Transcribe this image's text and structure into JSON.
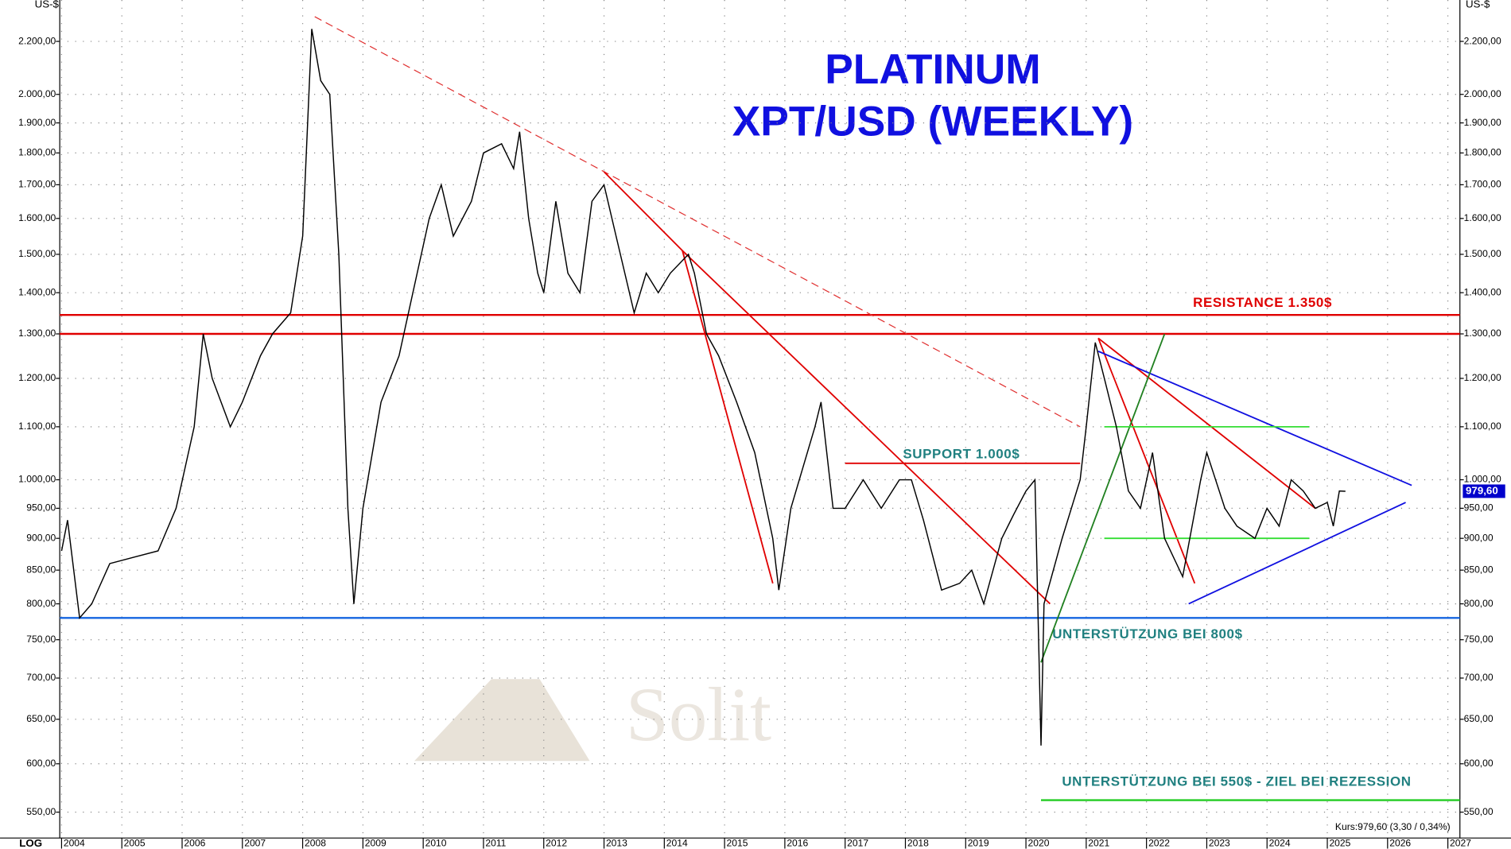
{
  "chart_data": {
    "type": "line",
    "title": "PLATINUM",
    "subtitle": "XPT/USD (WEEKLY)",
    "y_unit": "US-$",
    "scale_label": "LOG",
    "log_scale": true,
    "grid": true,
    "color": "#000000",
    "watermark": "Solit",
    "x": [
      2004.0,
      2004.1,
      2004.3,
      2004.5,
      2004.8,
      2005.2,
      2005.6,
      2005.9,
      2006.2,
      2006.35,
      2006.5,
      2006.8,
      2007.0,
      2007.3,
      2007.5,
      2007.8,
      2008.0,
      2008.15,
      2008.3,
      2008.45,
      2008.6,
      2008.75,
      2008.85,
      2009.0,
      2009.3,
      2009.6,
      2009.9,
      2010.1,
      2010.3,
      2010.5,
      2010.8,
      2011.0,
      2011.3,
      2011.5,
      2011.6,
      2011.75,
      2011.9,
      2012.0,
      2012.2,
      2012.4,
      2012.6,
      2012.8,
      2013.0,
      2013.2,
      2013.5,
      2013.7,
      2013.9,
      2014.1,
      2014.4,
      2014.5,
      2014.7,
      2014.9,
      2015.2,
      2015.5,
      2015.8,
      2015.9,
      2016.1,
      2016.5,
      2016.6,
      2016.8,
      2017.0,
      2017.3,
      2017.6,
      2017.9,
      2018.1,
      2018.3,
      2018.6,
      2018.9,
      2019.1,
      2019.3,
      2019.6,
      2019.8,
      2020.0,
      2020.15,
      2020.25,
      2020.3,
      2020.6,
      2020.9,
      2021.0,
      2021.15,
      2021.3,
      2021.5,
      2021.7,
      2021.9,
      2022.1,
      2022.3,
      2022.6,
      2022.9,
      2023.0,
      2023.3,
      2023.5,
      2023.8,
      2024.0,
      2024.2,
      2024.4,
      2024.6,
      2024.8,
      2025.0,
      2025.1,
      2025.2,
      2025.3
    ],
    "values": [
      880,
      930,
      780,
      800,
      860,
      870,
      880,
      950,
      1100,
      1300,
      1200,
      1100,
      1150,
      1250,
      1300,
      1350,
      1550,
      2250,
      2050,
      2000,
      1500,
      950,
      800,
      950,
      1150,
      1250,
      1450,
      1600,
      1700,
      1550,
      1650,
      1800,
      1830,
      1750,
      1870,
      1600,
      1450,
      1400,
      1650,
      1450,
      1400,
      1650,
      1700,
      1550,
      1350,
      1450,
      1400,
      1450,
      1500,
      1450,
      1300,
      1250,
      1150,
      1050,
      900,
      820,
      950,
      1100,
      1150,
      950,
      950,
      1000,
      950,
      1000,
      1000,
      930,
      820,
      830,
      850,
      800,
      900,
      940,
      980,
      1000,
      620,
      800,
      900,
      1000,
      1100,
      1280,
      1200,
      1100,
      980,
      950,
      1050,
      900,
      840,
      1000,
      1050,
      950,
      920,
      900,
      950,
      920,
      1000,
      980,
      950,
      960,
      920,
      980,
      979.6
    ],
    "xlim": [
      2003.97,
      2027.2
    ],
    "ylim": [
      525,
      2370
    ],
    "xticks": [
      2004,
      2005,
      2006,
      2007,
      2008,
      2009,
      2010,
      2011,
      2012,
      2013,
      2014,
      2015,
      2016,
      2017,
      2018,
      2019,
      2020,
      2021,
      2022,
      2023,
      2024,
      2025,
      2026,
      2027
    ],
    "yticks": [
      {
        "value": 550,
        "label": "550,00"
      },
      {
        "value": 600,
        "label": "600,00"
      },
      {
        "value": 650,
        "label": "650,00"
      },
      {
        "value": 700,
        "label": "700,00"
      },
      {
        "value": 750,
        "label": "750,00"
      },
      {
        "value": 800,
        "label": "800,00"
      },
      {
        "value": 850,
        "label": "850,00"
      },
      {
        "value": 900,
        "label": "900,00"
      },
      {
        "value": 950,
        "label": "950,00"
      },
      {
        "value": 1000,
        "label": "1.000,00"
      },
      {
        "value": 1100,
        "label": "1.100,00"
      },
      {
        "value": 1200,
        "label": "1.200,00"
      },
      {
        "value": 1300,
        "label": "1.300,00"
      },
      {
        "value": 1400,
        "label": "1.400,00"
      },
      {
        "value": 1500,
        "label": "1.500,00"
      },
      {
        "value": 1600,
        "label": "1.600,00"
      },
      {
        "value": 1700,
        "label": "1.700,00"
      },
      {
        "value": 1800,
        "label": "1.800,00"
      },
      {
        "value": 1900,
        "label": "1.900,00"
      },
      {
        "value": 2000,
        "label": "2.000,00"
      },
      {
        "value": 2200,
        "label": "2.200,00"
      }
    ],
    "current_price": {
      "value": 979.6,
      "label": "979,60"
    },
    "quote": "Kurs:979,60 (3,30 / 0,34%)",
    "levels": [
      {
        "value": 1345,
        "color": "#e00000"
      },
      {
        "value": 1300,
        "color": "#e00000"
      },
      {
        "value": 780,
        "color": "#1565e0"
      },
      {
        "value": 562,
        "color": "#22cc22",
        "from": 2020.25
      }
    ],
    "trendlines": [
      {
        "color": "#e03030",
        "dashed": true,
        "x": [
          2008.2,
          2020.9
        ],
        "y": [
          2300,
          1100
        ]
      },
      {
        "color": "#e00000",
        "x": [
          2013.0,
          2014.3
        ],
        "y": [
          1740,
          1510
        ]
      },
      {
        "color": "#e00000",
        "x": [
          2014.3,
          2015.8
        ],
        "y": [
          1510,
          830
        ]
      },
      {
        "color": "#e00000",
        "x": [
          2014.3,
          2020.4
        ],
        "y": [
          1510,
          800
        ]
      },
      {
        "color": "#e00000",
        "x": [
          2017.0,
          2020.9
        ],
        "y": [
          1030,
          1030
        ]
      },
      {
        "color": "#e00000",
        "x": [
          2021.2,
          2022.8
        ],
        "y": [
          1290,
          830
        ]
      },
      {
        "color": "#e00000",
        "x": [
          2021.2,
          2024.8
        ],
        "y": [
          1290,
          950
        ]
      },
      {
        "color": "#1010e0",
        "x": [
          2021.2,
          2026.4
        ],
        "y": [
          1260,
          990
        ]
      },
      {
        "color": "#1010e0",
        "x": [
          2022.7,
          2026.3
        ],
        "y": [
          800,
          960
        ]
      },
      {
        "color": "#208020",
        "x": [
          2020.25,
          2022.3
        ],
        "y": [
          720,
          1300
        ]
      },
      {
        "color": "#33dd33",
        "x": [
          2021.3,
          2024.7
        ],
        "y": [
          1100,
          1100
        ]
      },
      {
        "color": "#33dd33",
        "x": [
          2021.3,
          2024.7
        ],
        "y": [
          900,
          900
        ]
      }
    ],
    "annotations": [
      "RESISTANCE 1.350$",
      "SUPPORT 1.000$",
      "UNTERSTÜTZUNG BEI 800$",
      "UNTERSTÜTZUNG BEI 550$ - ZIEL BEI REZESSION"
    ]
  }
}
